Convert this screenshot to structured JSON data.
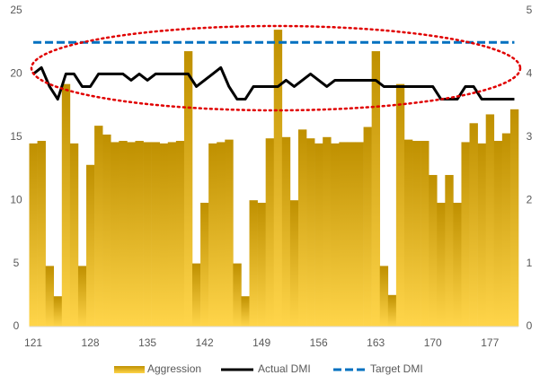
{
  "chart_data": {
    "type": "bar_line",
    "x": [
      121,
      122,
      123,
      124,
      125,
      126,
      127,
      128,
      129,
      130,
      131,
      132,
      133,
      134,
      135,
      136,
      137,
      138,
      139,
      140,
      141,
      142,
      143,
      144,
      145,
      146,
      147,
      148,
      149,
      150,
      151,
      152,
      153,
      154,
      155,
      156,
      157,
      158,
      159,
      160,
      161,
      162,
      163,
      164,
      165,
      166,
      167,
      168,
      169,
      170,
      171,
      172,
      173,
      174,
      175,
      176,
      177,
      178,
      179,
      180
    ],
    "xlim": [
      120.5,
      180.5
    ],
    "xticks": [
      121,
      128,
      135,
      142,
      149,
      156,
      163,
      170,
      177
    ],
    "ylim": [
      0,
      25
    ],
    "yticks": [
      0,
      5,
      10,
      15,
      20,
      25
    ],
    "y2lim": [
      0,
      5
    ],
    "y2ticks": [
      0,
      1,
      2,
      3,
      4,
      5
    ],
    "grid": false,
    "legend": "bottom",
    "series": [
      {
        "name": "Aggression",
        "type": "bar",
        "color": "#bf9000",
        "axis": "y",
        "values": [
          14.5,
          14.7,
          4.8,
          2.4,
          19.2,
          14.5,
          4.8,
          12.8,
          15.9,
          15.2,
          14.6,
          14.7,
          14.6,
          14.7,
          14.6,
          14.6,
          14.5,
          14.6,
          14.7,
          21.8,
          5.0,
          9.8,
          14.5,
          14.6,
          14.8,
          5.0,
          2.4,
          10.0,
          9.8,
          14.9,
          23.5,
          15.0,
          10.0,
          15.6,
          14.9,
          14.5,
          15.0,
          14.5,
          14.6,
          14.6,
          14.6,
          15.8,
          21.8,
          4.8,
          2.5,
          19.2,
          14.8,
          14.7,
          14.7,
          12.0,
          9.8,
          12.0,
          9.8,
          14.6,
          16.1,
          14.5,
          16.8,
          14.7,
          15.3,
          17.2
        ]
      },
      {
        "name": "Actual DMI",
        "type": "line",
        "color": "#000000",
        "axis": "y2",
        "dashed": false,
        "values": [
          4.0,
          4.1,
          3.8,
          3.6,
          4.0,
          4.0,
          3.8,
          3.8,
          4.0,
          4.0,
          4.0,
          4.0,
          3.9,
          4.0,
          3.9,
          4.0,
          4.0,
          4.0,
          4.0,
          4.0,
          3.8,
          3.9,
          4.0,
          4.1,
          3.8,
          3.6,
          3.6,
          3.8,
          3.8,
          3.8,
          3.8,
          3.9,
          3.8,
          3.9,
          4.0,
          3.9,
          3.8,
          3.9,
          3.9,
          3.9,
          3.9,
          3.9,
          3.9,
          3.8,
          3.8,
          3.8,
          3.8,
          3.8,
          3.8,
          3.8,
          3.6,
          3.6,
          3.6,
          3.8,
          3.8,
          3.6,
          3.6,
          3.6,
          3.6,
          3.6
        ]
      },
      {
        "name": "Target DMI",
        "type": "line",
        "color": "#0070c0",
        "axis": "y2",
        "dashed": true,
        "values": [
          4.5,
          4.5,
          4.5,
          4.5,
          4.5,
          4.5,
          4.5,
          4.5,
          4.5,
          4.5,
          4.5,
          4.5,
          4.5,
          4.5,
          4.5,
          4.5,
          4.5,
          4.5,
          4.5,
          4.5,
          4.5,
          4.5,
          4.5,
          4.5,
          4.5,
          4.5,
          4.5,
          4.5,
          4.5,
          4.5,
          4.5,
          4.5,
          4.5,
          4.5,
          4.5,
          4.5,
          4.5,
          4.5,
          4.5,
          4.5,
          4.5,
          4.5,
          4.5,
          4.5,
          4.5,
          4.5,
          4.5,
          4.5,
          4.5,
          4.5,
          4.5,
          4.5,
          4.5,
          4.5,
          4.5,
          4.5,
          4.5,
          4.5,
          4.5,
          4.5
        ]
      }
    ]
  }
}
